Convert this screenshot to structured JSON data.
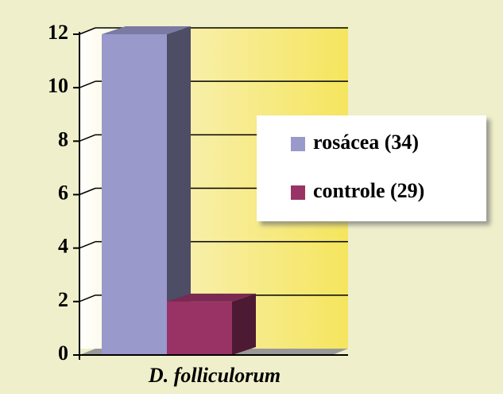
{
  "chart_data": {
    "type": "bar3d",
    "x_label": "D. folliculorum",
    "categories": [
      "D. folliculorum"
    ],
    "series": [
      {
        "name": "rosácea (34)",
        "color": "#9999cc",
        "values": [
          12
        ]
      },
      {
        "name": "controle (29)",
        "color": "#993366",
        "values": [
          2
        ]
      }
    ],
    "ylim": [
      0,
      12
    ],
    "yticks": [
      0,
      2,
      4,
      6,
      8,
      10,
      12
    ],
    "grid": true,
    "legend": "right"
  }
}
